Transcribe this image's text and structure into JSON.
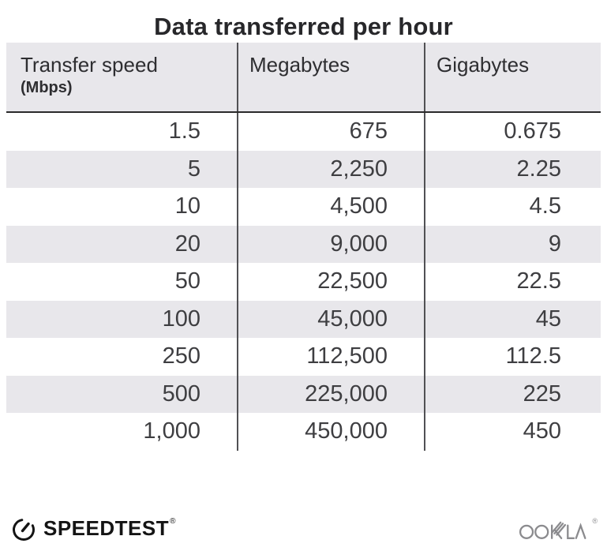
{
  "title": "Data transferred per hour",
  "table": {
    "columns": [
      {
        "label": "Transfer speed",
        "sublabel": "(Mbps)"
      },
      {
        "label": "Megabytes"
      },
      {
        "label": "Gigabytes"
      }
    ],
    "rows": [
      [
        "1.5",
        "675",
        "0.675"
      ],
      [
        "5",
        "2,250",
        "2.25"
      ],
      [
        "10",
        "4,500",
        "4.5"
      ],
      [
        "20",
        "9,000",
        "9"
      ],
      [
        "50",
        "22,500",
        "22.5"
      ],
      [
        "100",
        "45,000",
        "45"
      ],
      [
        "250",
        "112,500",
        "112.5"
      ],
      [
        "500",
        "225,000",
        "225"
      ],
      [
        "1,000",
        "450,000",
        "450"
      ]
    ]
  },
  "chart_data": {
    "type": "table",
    "title": "Data transferred per hour",
    "columns": [
      "Transfer speed (Mbps)",
      "Megabytes",
      "Gigabytes"
    ],
    "rows": [
      [
        1.5,
        675,
        0.675
      ],
      [
        5,
        2250,
        2.25
      ],
      [
        10,
        4500,
        4.5
      ],
      [
        20,
        9000,
        9
      ],
      [
        50,
        22500,
        22.5
      ],
      [
        100,
        45000,
        45
      ],
      [
        250,
        112500,
        112.5
      ],
      [
        500,
        225000,
        225
      ],
      [
        1000,
        450000,
        450
      ]
    ]
  },
  "footer": {
    "speedtest_label": "SPEEDTEST",
    "speedtest_trademark": "®",
    "ookla_label": "OOKLA",
    "ookla_trademark": "®"
  },
  "colors": {
    "stripe": "#e8e7eb",
    "header_bg": "#e8e7eb",
    "column_divider": "#515154",
    "header_rule": "#2a2a2a",
    "title_text": "#27272a",
    "body_text": "#3e3e41",
    "logo_black": "#141414",
    "ookla_gray": "#8b8b8e"
  }
}
